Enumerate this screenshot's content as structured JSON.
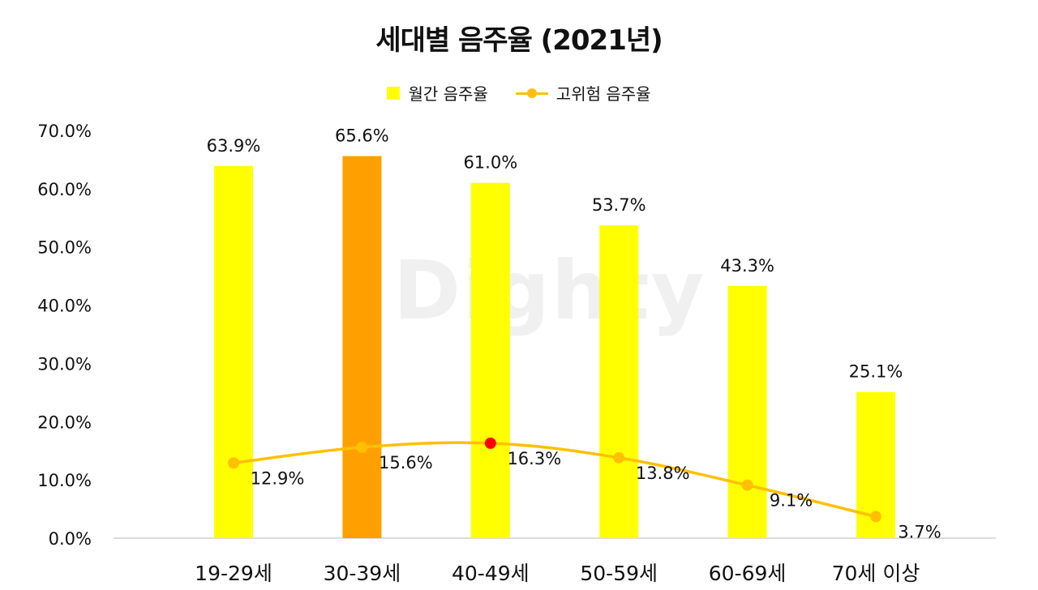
{
  "watermark": "Dighty",
  "chart_data": {
    "type": "bar",
    "title": "세대별 음주율 (2021년)",
    "categories": [
      "19-29세",
      "30-39세",
      "40-49세",
      "50-59세",
      "60-69세",
      "70세 이상"
    ],
    "series": [
      {
        "name": "월간 음주율",
        "kind": "bar",
        "values": [
          63.9,
          65.6,
          61.0,
          53.7,
          43.3,
          25.1
        ],
        "labels": [
          "63.9%",
          "65.6%",
          "61.0%",
          "53.7%",
          "43.3%",
          "25.1%"
        ],
        "color": "#ffff00",
        "highlight_index": 1,
        "highlight_color": "#ffa000"
      },
      {
        "name": "고위험 음주율",
        "kind": "line",
        "values": [
          12.9,
          15.6,
          16.3,
          13.8,
          9.1,
          3.7
        ],
        "labels": [
          "12.9%",
          "15.6%",
          "16.3%",
          "13.8%",
          "9.1%",
          "3.7%"
        ],
        "color": "#ffc000",
        "highlight_index": 2,
        "highlight_color": "#ff0000"
      }
    ],
    "y_ticks": [
      "0.0%",
      "10.0%",
      "20.0%",
      "30.0%",
      "40.0%",
      "50.0%",
      "60.0%",
      "70.0%"
    ],
    "ylim": [
      0,
      70
    ],
    "xlabel": "",
    "ylabel": "",
    "legend": "top-center",
    "grid": false
  }
}
